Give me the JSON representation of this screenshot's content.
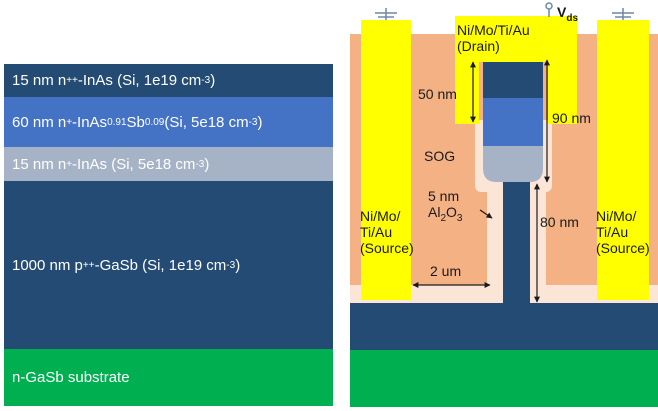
{
  "left_stack": {
    "layer1": {
      "t1": "15 nm n",
      "s1": "++",
      "t2": "-InAs  (Si, 1e19 cm",
      "s2": "-3",
      "t3": ")"
    },
    "layer2": {
      "t1": "60 nm n",
      "s1": "+",
      "t2": "-InAs",
      "b1": "0.91",
      "t3": "Sb",
      "b2": "0.09",
      "t4": " (Si, 5e18 cm",
      "s2": "-3",
      "t5": ")"
    },
    "layer3": {
      "t1": "15 nm n",
      "s1": "+",
      "t2": "-InAs (Si, 5e18 cm",
      "s2": "-3",
      "t3": ")"
    },
    "layer4": {
      "t1": "1000 nm p",
      "s1": "++",
      "t2": "-GaSb (Si, 1e19 cm",
      "s2": "-3",
      "t3": ")"
    },
    "layer5": {
      "t1": "n-GaSb substrate"
    }
  },
  "device": {
    "vds": {
      "main": "V",
      "sub": "ds"
    },
    "drain": {
      "line1": "Ni/Mo/Ti/Au",
      "line2": "(Drain)"
    },
    "source_left": {
      "line1": "Ni/Mo/",
      "line2": "Ti/Au",
      "line3": "(Source)"
    },
    "source_right": {
      "line1": "Ni/Mo/",
      "line2": "Ti/Au",
      "line3": "(Source)"
    },
    "sog": "SOG",
    "dim_50nm": "50 nm",
    "dim_90nm": "90 nm",
    "dim_80nm": "80 nm",
    "dim_2um": "2 um",
    "al2o3": {
      "l1": "5 nm",
      "t1": "Al",
      "b1": "2",
      "t2": "O",
      "b2": "3"
    }
  },
  "colors": {
    "navy": "#234b73",
    "mid_blue": "#4472c4",
    "grey_blue": "#a6b3c6",
    "green": "#00b050",
    "orange": "#f4b183",
    "light_orange": "#fbe5d6",
    "yellow": "#ffff00",
    "ground": "#6d87ad"
  }
}
